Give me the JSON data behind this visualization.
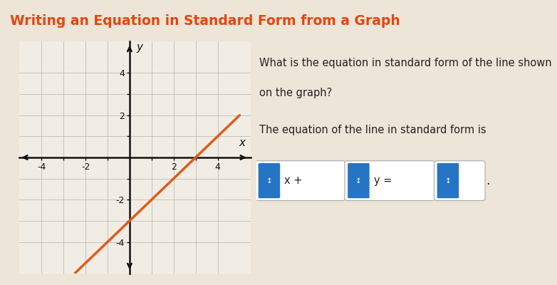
{
  "title": "Writing an Equation in Standard Form from a Graph",
  "title_color": "#e8450a",
  "title_fontsize": 13.5,
  "title_fontweight": "bold",
  "bg_color": "#ede5d8",
  "header_color": "#cec5b5",
  "graph_bg": "#f2ede4",
  "graph_border": "#999999",
  "grid_color": "#bbbbbb",
  "line_color": "#e05a1a",
  "line_width": 2.5,
  "question_text1": "What is the equation in standard form of the line shown",
  "question_text2": "on the graph?",
  "equation_label": "The equation of the line in standard form is",
  "text_color": "#222222",
  "font_size_body": 10.5,
  "btn_color": "#2575c4",
  "box_edge_color": "#aaaaaa",
  "box_face_color": "#ffffff"
}
